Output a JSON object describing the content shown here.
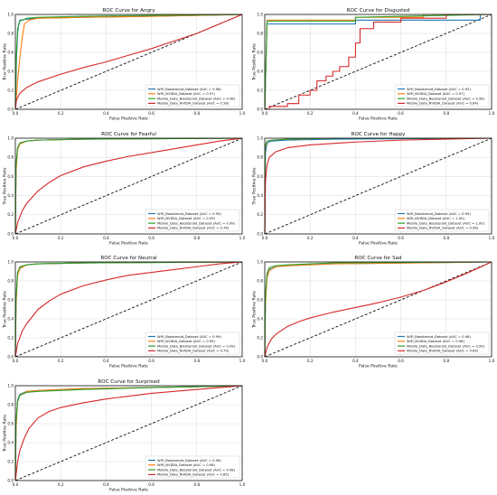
{
  "chart_data": [
    {
      "type": "line",
      "title": "ROC Curve for Angry",
      "xlabel": "False Positive Rate",
      "ylabel": "True Positive Rate",
      "xlim": [
        0,
        1
      ],
      "ylim": [
        0,
        1
      ],
      "xticks": [
        "0.0",
        "0.2",
        "0.4",
        "0.6",
        "0.8",
        "1.0"
      ],
      "yticks": [
        "0.0",
        "0.2",
        "0.4",
        "0.6",
        "0.8",
        "1.0"
      ],
      "grid": true,
      "legend_position": "lower right",
      "series": [
        {
          "name": "WiFi_Boosteroid_Dataset (AUC = 0.98)",
          "color": "#1f77b4",
          "x": [
            0,
            0.005,
            0.01,
            0.015,
            0.02,
            0.05,
            0.1,
            0.3,
            0.6,
            1
          ],
          "y": [
            0,
            0.55,
            0.8,
            0.9,
            0.94,
            0.95,
            0.96,
            0.97,
            0.98,
            1
          ]
        },
        {
          "name": "WiFi_NVIDIA_Dataset (AUC = 0.97)",
          "color": "#ff7f0e",
          "x": [
            0,
            0.01,
            0.02,
            0.03,
            0.04,
            0.06,
            0.1,
            0.3,
            0.6,
            1
          ],
          "y": [
            0,
            0.3,
            0.55,
            0.75,
            0.9,
            0.94,
            0.96,
            0.97,
            0.98,
            1
          ]
        },
        {
          "name": "Mobile_Data_Boosteroid_Dataset (AUC = 0.98)",
          "color": "#2ca02c",
          "x": [
            0,
            0.005,
            0.01,
            0.02,
            0.05,
            0.1,
            0.3,
            0.6,
            1
          ],
          "y": [
            0,
            0.6,
            0.85,
            0.93,
            0.96,
            0.97,
            0.98,
            0.99,
            1
          ]
        },
        {
          "name": "Mobile_Data_NVIDIA_Dataset (AUC = 0.58)",
          "color": "#d62728",
          "x": [
            0,
            0.005,
            0.02,
            0.05,
            0.1,
            0.2,
            0.3,
            0.4,
            0.5,
            0.6,
            0.7,
            0.8,
            0.9,
            1
          ],
          "y": [
            0,
            0.1,
            0.17,
            0.23,
            0.29,
            0.37,
            0.44,
            0.5,
            0.57,
            0.64,
            0.72,
            0.8,
            0.9,
            1
          ]
        }
      ]
    },
    {
      "type": "line",
      "title": "ROC Curve for Disgusted",
      "xlabel": "False Positive Rate",
      "ylabel": "True Positive Rate",
      "xlim": [
        0,
        1
      ],
      "ylim": [
        0,
        1
      ],
      "xticks": [
        "0.0",
        "0.2",
        "0.4",
        "0.6",
        "0.8",
        "1.0"
      ],
      "yticks": [
        "0.0",
        "0.2",
        "0.4",
        "0.6",
        "0.8",
        "1.0"
      ],
      "grid": true,
      "legend_position": "lower right",
      "series": [
        {
          "name": "WiFi_Boosteroid_Dataset (AUC = 0.92)",
          "color": "#1f77b4",
          "x": [
            0,
            0.01,
            0.4,
            0.4,
            0.95,
            0.95,
            1
          ],
          "y": [
            0,
            0.9,
            0.9,
            0.94,
            0.94,
            1,
            1
          ]
        },
        {
          "name": "WiFi_NVIDIA_Dataset (AUC = 0.97)",
          "color": "#ff7f0e",
          "x": [
            0,
            0.01,
            0.4,
            0.4,
            0.7,
            0.7,
            1
          ],
          "y": [
            0,
            0.94,
            0.94,
            0.97,
            0.97,
            1,
            1
          ]
        },
        {
          "name": "Mobile_Data_Boosteroid_Dataset (AUC = 0.96)",
          "color": "#2ca02c",
          "x": [
            0,
            0.01,
            0.4,
            0.4,
            1
          ],
          "y": [
            0,
            0.93,
            0.93,
            0.97,
            1
          ]
        },
        {
          "name": "Mobile_Data_NVIDIA_Dataset (AUC = 0.64)",
          "color": "#d62728",
          "x": [
            0,
            0.02,
            0.02,
            0.1,
            0.1,
            0.15,
            0.15,
            0.2,
            0.2,
            0.23,
            0.23,
            0.27,
            0.27,
            0.3,
            0.3,
            0.33,
            0.33,
            0.37,
            0.37,
            0.4,
            0.4,
            0.42,
            0.42,
            0.48,
            0.48,
            0.6,
            0.6,
            0.8,
            0.8,
            1
          ],
          "y": [
            0,
            0,
            0.03,
            0.03,
            0.06,
            0.06,
            0.15,
            0.15,
            0.2,
            0.2,
            0.3,
            0.3,
            0.35,
            0.35,
            0.4,
            0.4,
            0.45,
            0.45,
            0.55,
            0.55,
            0.7,
            0.7,
            0.85,
            0.85,
            0.92,
            0.92,
            0.96,
            0.96,
            1,
            1
          ]
        }
      ]
    },
    {
      "type": "line",
      "title": "ROC Curve for Fearful",
      "xlabel": "False Positive Rate",
      "ylabel": "True Positive Rate",
      "xlim": [
        0,
        1
      ],
      "ylim": [
        0,
        1
      ],
      "xticks": [
        "0.0",
        "0.2",
        "0.4",
        "0.6",
        "0.8",
        "1.0"
      ],
      "yticks": [
        "0.0",
        "0.2",
        "0.4",
        "0.6",
        "0.8",
        "1.0"
      ],
      "grid": true,
      "legend_position": "lower right",
      "series": [
        {
          "name": "WiFi_Boosteroid_Dataset (AUC = 0.99)",
          "color": "#1f77b4",
          "x": [
            0,
            0.003,
            0.01,
            0.02,
            0.05,
            0.1,
            0.3,
            1
          ],
          "y": [
            0,
            0.7,
            0.9,
            0.95,
            0.97,
            0.98,
            0.99,
            1
          ]
        },
        {
          "name": "WiFi_NVIDIA_Dataset (AUC = 0.99)",
          "color": "#ff7f0e",
          "x": [
            0,
            0.003,
            0.01,
            0.02,
            0.05,
            0.1,
            0.3,
            1
          ],
          "y": [
            0,
            0.65,
            0.88,
            0.94,
            0.97,
            0.98,
            0.99,
            1
          ]
        },
        {
          "name": "Mobile_Data_Boosteroid_Dataset (AUC = 0.99)",
          "color": "#2ca02c",
          "x": [
            0,
            0.003,
            0.01,
            0.02,
            0.05,
            0.1,
            0.3,
            1
          ],
          "y": [
            0,
            0.72,
            0.9,
            0.95,
            0.97,
            0.98,
            0.99,
            1
          ]
        },
        {
          "name": "Mobile_Data_NVIDIA_Dataset (AUC = 0.76)",
          "color": "#d62728",
          "x": [
            0,
            0.01,
            0.03,
            0.05,
            0.1,
            0.15,
            0.2,
            0.3,
            0.4,
            0.5,
            0.6,
            0.7,
            0.8,
            0.9,
            1
          ],
          "y": [
            0,
            0.12,
            0.24,
            0.32,
            0.45,
            0.54,
            0.61,
            0.7,
            0.76,
            0.81,
            0.85,
            0.89,
            0.93,
            0.97,
            1
          ]
        }
      ]
    },
    {
      "type": "line",
      "title": "ROC Curve for Happy",
      "xlabel": "False Positive Rate",
      "ylabel": "True Positive Rate",
      "xlim": [
        0,
        1
      ],
      "ylim": [
        0,
        1
      ],
      "xticks": [
        "0.0",
        "0.2",
        "0.4",
        "0.6",
        "0.8",
        "1.0"
      ],
      "yticks": [
        "0.0",
        "0.2",
        "0.4",
        "0.6",
        "0.8",
        "1.0"
      ],
      "grid": true,
      "legend_position": "lower right",
      "series": [
        {
          "name": "WiFi_Boosteroid_Dataset (AUC = 0.99)",
          "color": "#1f77b4",
          "x": [
            0,
            0.003,
            0.01,
            0.03,
            0.1,
            0.3,
            1
          ],
          "y": [
            0,
            0.85,
            0.95,
            0.97,
            0.98,
            0.99,
            1
          ]
        },
        {
          "name": "WiFi_NVIDIA_Dataset (AUC = 1.00)",
          "color": "#ff7f0e",
          "x": [
            0,
            0.002,
            0.01,
            0.03,
            0.1,
            0.3,
            1
          ],
          "y": [
            0,
            0.9,
            0.97,
            0.98,
            0.99,
            1,
            1
          ]
        },
        {
          "name": "Mobile_Data_Boosteroid_Dataset (AUC = 1.00)",
          "color": "#2ca02c",
          "x": [
            0,
            0.002,
            0.01,
            0.03,
            0.1,
            0.3,
            1
          ],
          "y": [
            0,
            0.92,
            0.97,
            0.98,
            0.99,
            1,
            1
          ]
        },
        {
          "name": "Mobile_Data_NVIDIA_Dataset (AUC = 0.96)",
          "color": "#d62728",
          "x": [
            0,
            0.003,
            0.01,
            0.02,
            0.05,
            0.1,
            0.2,
            0.4,
            0.6,
            0.8,
            1
          ],
          "y": [
            0,
            0.55,
            0.72,
            0.8,
            0.86,
            0.9,
            0.93,
            0.96,
            0.98,
            0.99,
            1
          ]
        }
      ]
    },
    {
      "type": "line",
      "title": "ROC Curve for Neutral",
      "xlabel": "False Positive Rate",
      "ylabel": "True Positive Rate",
      "xlim": [
        0,
        1
      ],
      "ylim": [
        0,
        1
      ],
      "xticks": [
        "0.0",
        "0.2",
        "0.4",
        "0.6",
        "0.8",
        "1.0"
      ],
      "yticks": [
        "0.0",
        "0.2",
        "0.4",
        "0.6",
        "0.8",
        "1.0"
      ],
      "grid": true,
      "legend_position": "lower right",
      "series": [
        {
          "name": "WiFi_Boosteroid_Dataset (AUC = 0.99)",
          "color": "#1f77b4",
          "x": [
            0,
            0.003,
            0.01,
            0.02,
            0.05,
            0.1,
            0.3,
            1
          ],
          "y": [
            0,
            0.6,
            0.88,
            0.94,
            0.97,
            0.98,
            0.99,
            1
          ]
        },
        {
          "name": "WiFi_NVIDIA_Dataset (AUC = 0.99)",
          "color": "#ff7f0e",
          "x": [
            0,
            0.003,
            0.01,
            0.02,
            0.05,
            0.1,
            0.3,
            1
          ],
          "y": [
            0,
            0.55,
            0.86,
            0.93,
            0.97,
            0.98,
            0.99,
            1
          ]
        },
        {
          "name": "Mobile_Data_Boosteroid_Dataset (AUC = 0.99)",
          "color": "#2ca02c",
          "x": [
            0,
            0.003,
            0.01,
            0.02,
            0.05,
            0.1,
            0.3,
            1
          ],
          "y": [
            0,
            0.62,
            0.89,
            0.95,
            0.97,
            0.98,
            0.99,
            1
          ]
        },
        {
          "name": "Mobile_Data_NVIDIA_Dataset (AUC = 0.79)",
          "color": "#d62728",
          "x": [
            0,
            0.01,
            0.03,
            0.05,
            0.1,
            0.15,
            0.2,
            0.3,
            0.4,
            0.5,
            0.6,
            0.7,
            0.8,
            0.9,
            1
          ],
          "y": [
            0,
            0.14,
            0.27,
            0.35,
            0.5,
            0.59,
            0.66,
            0.75,
            0.81,
            0.86,
            0.89,
            0.92,
            0.95,
            0.98,
            1
          ]
        }
      ]
    },
    {
      "type": "line",
      "title": "ROC Curve for Sad",
      "xlabel": "False Positive Rate",
      "ylabel": "True Positive Rate",
      "xlim": [
        0,
        1
      ],
      "ylim": [
        0,
        1
      ],
      "xticks": [
        "0.0",
        "0.2",
        "0.4",
        "0.6",
        "0.8",
        "1.0"
      ],
      "yticks": [
        "0.0",
        "0.2",
        "0.4",
        "0.6",
        "0.8",
        "1.0"
      ],
      "grid": true,
      "legend_position": "lower right",
      "series": [
        {
          "name": "WiFi_Boosteroid_Dataset (AUC = 0.98)",
          "color": "#1f77b4",
          "x": [
            0,
            0.003,
            0.01,
            0.02,
            0.05,
            0.1,
            0.3,
            1
          ],
          "y": [
            0,
            0.6,
            0.85,
            0.92,
            0.95,
            0.96,
            0.98,
            1
          ]
        },
        {
          "name": "WiFi_NVIDIA_Dataset (AUC = 0.98)",
          "color": "#ff7f0e",
          "x": [
            0,
            0.003,
            0.01,
            0.02,
            0.05,
            0.1,
            0.3,
            1
          ],
          "y": [
            0,
            0.55,
            0.83,
            0.91,
            0.95,
            0.96,
            0.98,
            1
          ]
        },
        {
          "name": "Mobile_Data_Boosteroid_Dataset (AUC = 0.99)",
          "color": "#2ca02c",
          "x": [
            0,
            0.003,
            0.01,
            0.02,
            0.05,
            0.1,
            0.3,
            1
          ],
          "y": [
            0,
            0.65,
            0.88,
            0.94,
            0.96,
            0.97,
            0.99,
            1
          ]
        },
        {
          "name": "Mobile_Data_NVIDIA_Dataset (AUC = 0.64)",
          "color": "#d62728",
          "x": [
            0,
            0.01,
            0.03,
            0.05,
            0.1,
            0.15,
            0.2,
            0.3,
            0.4,
            0.5,
            0.6,
            0.7,
            0.8,
            0.9,
            1
          ],
          "y": [
            0,
            0.1,
            0.19,
            0.24,
            0.32,
            0.37,
            0.41,
            0.47,
            0.52,
            0.57,
            0.63,
            0.7,
            0.79,
            0.89,
            1
          ]
        }
      ]
    },
    {
      "type": "line",
      "title": "ROC Curve for Surprised",
      "xlabel": "False Positive Rate",
      "ylabel": "True Positive Rate",
      "xlim": [
        0,
        1
      ],
      "ylim": [
        0,
        1
      ],
      "xticks": [
        "0.0",
        "0.2",
        "0.4",
        "0.6",
        "0.8",
        "1.0"
      ],
      "yticks": [
        "0.0",
        "0.2",
        "0.4",
        "0.6",
        "0.8",
        "1.0"
      ],
      "grid": true,
      "legend_position": "lower right",
      "series": [
        {
          "name": "WiFi_Boosteroid_Dataset (AUC = 0.98)",
          "color": "#1f77b4",
          "x": [
            0,
            0.003,
            0.01,
            0.02,
            0.05,
            0.1,
            0.3,
            0.6,
            1
          ],
          "y": [
            0,
            0.6,
            0.85,
            0.91,
            0.94,
            0.95,
            0.97,
            0.98,
            1
          ]
        },
        {
          "name": "WiFi_NVIDIA_Dataset (AUC = 0.98)",
          "color": "#ff7f0e",
          "x": [
            0,
            0.003,
            0.01,
            0.02,
            0.05,
            0.1,
            0.3,
            0.6,
            1
          ],
          "y": [
            0,
            0.55,
            0.83,
            0.9,
            0.94,
            0.95,
            0.97,
            0.98,
            1
          ]
        },
        {
          "name": "Mobile_Data_Boosteroid_Dataset (AUC = 0.98)",
          "color": "#2ca02c",
          "x": [
            0,
            0.003,
            0.01,
            0.02,
            0.05,
            0.1,
            0.3,
            0.6,
            1
          ],
          "y": [
            0,
            0.62,
            0.84,
            0.9,
            0.93,
            0.94,
            0.96,
            0.98,
            1
          ]
        },
        {
          "name": "Mobile_Data_NVIDIA_Dataset (AUC = 0.85)",
          "color": "#d62728",
          "x": [
            0,
            0.01,
            0.02,
            0.04,
            0.06,
            0.1,
            0.15,
            0.2,
            0.3,
            0.4,
            0.5,
            0.6,
            0.8,
            1
          ],
          "y": [
            0,
            0.2,
            0.32,
            0.45,
            0.55,
            0.66,
            0.73,
            0.77,
            0.82,
            0.86,
            0.89,
            0.92,
            0.96,
            1
          ]
        }
      ]
    }
  ]
}
